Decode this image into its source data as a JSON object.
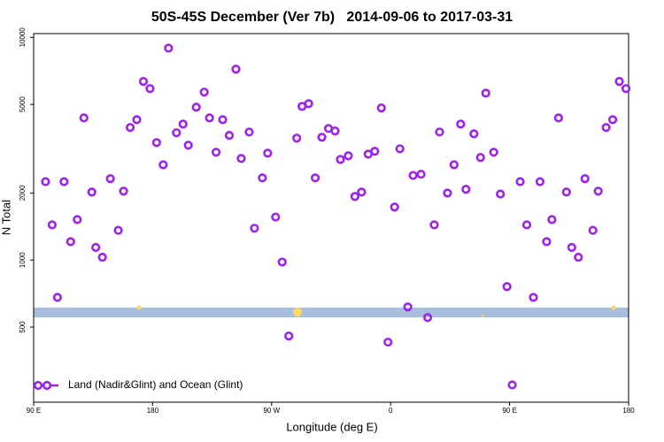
{
  "chart_data": {
    "type": "scatter",
    "title": "50S-45S December (Ver 7b)   2014-09-06 to 2017-03-31",
    "x_label": "Longitude (deg E)",
    "y_label": "N Total",
    "log_y": true,
    "legend": "bottom-left",
    "x": [
      99,
      104,
      108,
      113,
      118,
      123,
      128,
      134,
      137,
      142,
      148,
      154,
      158,
      163,
      168,
      173,
      178,
      183,
      188,
      192,
      198,
      203,
      207,
      213,
      219,
      223,
      228,
      233,
      238,
      243,
      247,
      253,
      257,
      263,
      267,
      273,
      278,
      283,
      289,
      293,
      298,
      303,
      308,
      313,
      318,
      322,
      328,
      333,
      338,
      343,
      348,
      353,
      358,
      363,
      367,
      373,
      377,
      383,
      388,
      393,
      397,
      403,
      408,
      413,
      417,
      423,
      428,
      432,
      438,
      443,
      448,
      452,
      458,
      463,
      468,
      473,
      478,
      482,
      487,
      493,
      497,
      502,
      507,
      513,
      517,
      523,
      528,
      533,
      538
    ],
    "series": [
      {
        "name": "Land (Nadir&Glint) and Ocean (Glint)",
        "color": "#a020f0",
        "values": [
          2250,
          1440,
          680,
          2250,
          1210,
          1520,
          4350,
          2020,
          1140,
          1030,
          2320,
          1360,
          2040,
          3940,
          4270,
          6340,
          5890,
          3370,
          2680,
          8950,
          3730,
          4080,
          3280,
          4860,
          5680,
          4350,
          3050,
          4270,
          3630,
          7200,
          2860,
          3760,
          1390,
          2340,
          3020,
          1560,
          980,
          456,
          3530,
          4900,
          5040,
          2340,
          3560,
          3900,
          3800,
          2830,
          2940,
          1930,
          2020,
          2990,
          3080,
          4820,
          428,
          1730,
          3160,
          616,
          2400,
          2430,
          552,
          1440,
          3760,
          2000,
          2680,
          4080,
          2080,
          3690,
          2890,
          5620,
          3050,
          1980,
          760,
          275,
          2250,
          1440,
          680,
          2250,
          1210,
          1520,
          4350,
          2020,
          1140,
          1030,
          2320,
          1360,
          2040,
          3940,
          4270,
          6340,
          5890
        ]
      }
    ],
    "xlim": [
      90,
      540
    ],
    "xticks": [
      {
        "value": 90,
        "label": "90 E"
      },
      180,
      {
        "value": 270,
        "label": "90 W"
      },
      {
        "value": 360,
        "label": "0"
      },
      {
        "value": 450,
        "label": "90 E"
      },
      {
        "value": 540,
        "label": "180"
      }
    ],
    "ylim": [
      230,
      10400
    ],
    "yticks": [
      500,
      1000,
      2000,
      5000,
      10000
    ]
  }
}
